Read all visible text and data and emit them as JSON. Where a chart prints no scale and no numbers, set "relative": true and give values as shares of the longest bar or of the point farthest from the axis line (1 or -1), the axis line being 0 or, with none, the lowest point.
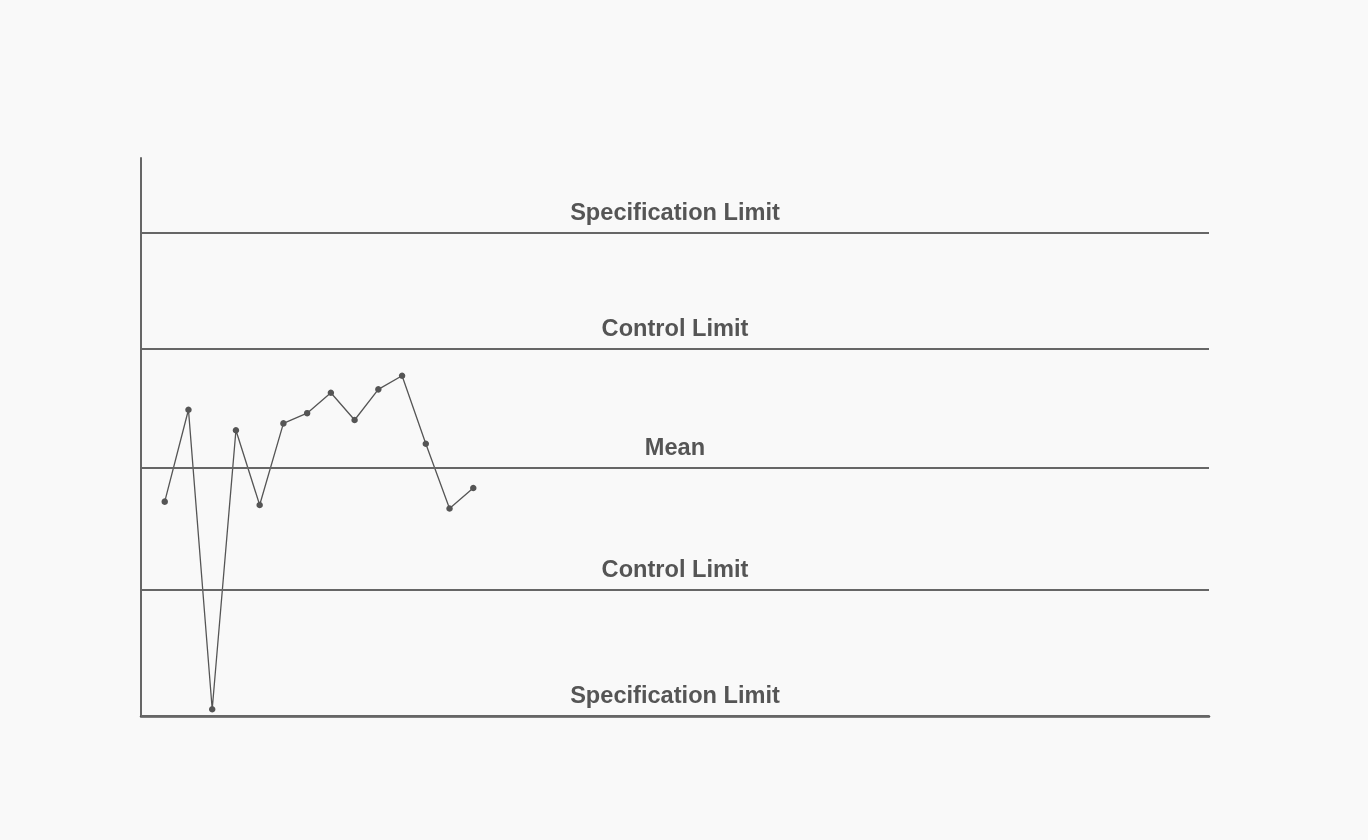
{
  "chart_data": {
    "type": "line",
    "relative": true,
    "marker": "circle",
    "line_style": "solid",
    "color": "#555555",
    "categories": [
      null,
      null,
      null,
      null,
      null,
      null,
      null,
      null,
      null,
      null,
      null,
      null,
      null,
      null,
      null,
      null,
      null,
      null,
      null,
      null,
      null,
      null,
      null,
      null,
      null,
      null,
      null,
      null,
      null,
      null,
      null,
      null,
      null,
      null,
      null,
      null,
      null,
      null,
      null,
      null,
      null,
      null,
      null,
      null,
      null,
      null
    ],
    "values": [
      null,
      0.63,
      0.9,
      0.02,
      0.84,
      0.62,
      0.86,
      0.89,
      0.95,
      0.87,
      0.96,
      1,
      0.8,
      0.61,
      0.67,
      null,
      null,
      null,
      null,
      null,
      null,
      null,
      null,
      null,
      null,
      null,
      null,
      null,
      null,
      null,
      null,
      null,
      null,
      null,
      null,
      null,
      null,
      null,
      null,
      null,
      null,
      null,
      null,
      null,
      null,
      null
    ],
    "ylim": [
      0,
      1.64
    ],
    "ref_lines": [
      {
        "axis": "y",
        "value": 1.42,
        "label": "Specification Limit",
        "color": "#666666"
      },
      {
        "axis": "y",
        "value": 1.08,
        "label": "Control Limit",
        "color": "#666666"
      },
      {
        "axis": "y",
        "value": 0.73,
        "label": "Mean",
        "color": "#666666"
      },
      {
        "axis": "y",
        "value": 0.37,
        "label": "Control Limit",
        "color": "#666666"
      },
      {
        "axis": "y",
        "value": 0,
        "label": "Specification Limit",
        "color": "#666666"
      }
    ]
  }
}
